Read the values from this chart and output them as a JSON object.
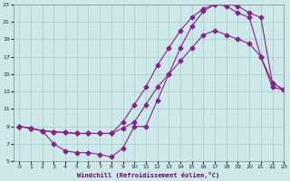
{
  "xlabel": "Windchill (Refroidissement éolien,°C)",
  "xlim": [
    -0.5,
    23
  ],
  "ylim": [
    5,
    23
  ],
  "xticks": [
    0,
    1,
    2,
    3,
    4,
    5,
    6,
    7,
    8,
    9,
    10,
    11,
    12,
    13,
    14,
    15,
    16,
    17,
    18,
    19,
    20,
    21,
    22,
    23
  ],
  "yticks": [
    5,
    7,
    9,
    11,
    13,
    15,
    17,
    19,
    21,
    23
  ],
  "bg_color": "#cce8e8",
  "grid_color": "#aacccc",
  "line_color": "#882288",
  "curve1_x": [
    0,
    1,
    2,
    3,
    4,
    5,
    6,
    7,
    8,
    9,
    10,
    11,
    12,
    13,
    14,
    15,
    16,
    17,
    18,
    19,
    20,
    21,
    22,
    23
  ],
  "curve1_y": [
    9.0,
    8.8,
    8.5,
    7.0,
    6.2,
    6.0,
    6.0,
    5.8,
    5.5,
    6.5,
    9.0,
    9.0,
    12.0,
    15.0,
    18.0,
    20.5,
    22.2,
    23.0,
    22.8,
    22.0,
    21.5,
    17.0,
    13.5,
    13.2
  ],
  "curve2_x": [
    0,
    1,
    2,
    3,
    4,
    5,
    6,
    7,
    8,
    9,
    10,
    11,
    12,
    13,
    14,
    15,
    16,
    17,
    18,
    19,
    20,
    21,
    22,
    23
  ],
  "curve2_y": [
    9.0,
    8.8,
    8.5,
    8.4,
    8.3,
    8.2,
    8.2,
    8.2,
    8.2,
    8.8,
    9.5,
    11.5,
    13.5,
    15.0,
    16.5,
    18.0,
    19.5,
    20.0,
    19.5,
    19.0,
    18.5,
    17.0,
    14.0,
    13.2
  ],
  "curve3_x": [
    0,
    1,
    2,
    3,
    4,
    5,
    6,
    7,
    8,
    9,
    10,
    11,
    12,
    13,
    14,
    15,
    16,
    17,
    18,
    19,
    20,
    21,
    22,
    23
  ],
  "curve3_y": [
    9.0,
    8.8,
    8.5,
    8.4,
    8.3,
    8.2,
    8.2,
    8.2,
    8.2,
    9.5,
    11.5,
    13.5,
    16.0,
    18.0,
    20.0,
    21.5,
    22.5,
    23.0,
    23.0,
    22.8,
    22.0,
    21.5,
    14.0,
    13.2
  ],
  "marker": "D",
  "marker_size": 2.5,
  "line_width": 0.8
}
